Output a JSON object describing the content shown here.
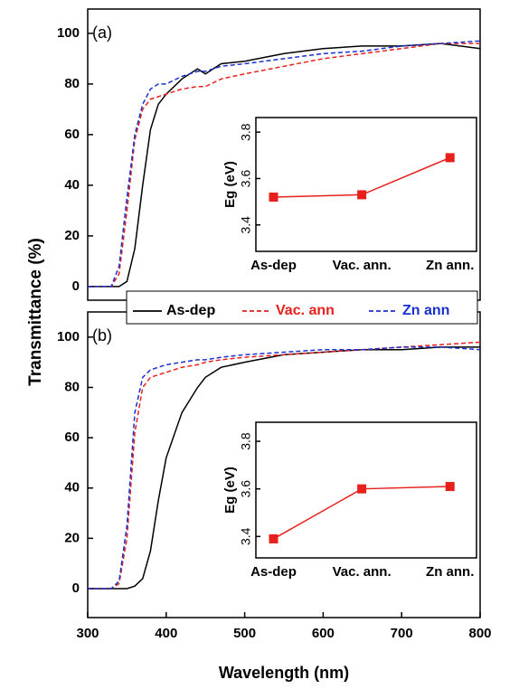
{
  "chart_data": [
    {
      "type": "line",
      "label": "(a)",
      "ylabel": "Transmittance (%)",
      "x": [
        300,
        330,
        340,
        350,
        360,
        370,
        380,
        390,
        400,
        420,
        440,
        450,
        470,
        500,
        550,
        600,
        650,
        700,
        750,
        800
      ],
      "xlim": [
        300,
        800
      ],
      "ylim": [
        -5.4,
        109.6
      ],
      "yticks": [
        0,
        20,
        40,
        60,
        80,
        100
      ],
      "series": [
        {
          "name": "As-dep",
          "color": "#000000",
          "style": "solid",
          "values": [
            0,
            0,
            0,
            2,
            15,
            40,
            62,
            72,
            76,
            82,
            86,
            84,
            88,
            89,
            92,
            94,
            95,
            95,
            96,
            94
          ]
        },
        {
          "name": "Vac. ann",
          "color": "#e8201c",
          "style": "dashed",
          "values": [
            0,
            0,
            5,
            30,
            58,
            70,
            74,
            75,
            76,
            78,
            79,
            79,
            82,
            84,
            87,
            90,
            92,
            94,
            96,
            96
          ]
        },
        {
          "name": "Zn ann",
          "color": "#1a2fd0",
          "style": "dashed",
          "values": [
            0,
            0,
            8,
            35,
            60,
            72,
            78,
            80,
            80,
            83,
            85,
            85,
            87,
            88,
            90,
            92,
            93,
            95,
            96,
            97
          ]
        }
      ]
    },
    {
      "type": "line",
      "marker": "square",
      "ylabel": "Eg (eV)",
      "color": "#e8201c",
      "categories": [
        "As-dep",
        "Vac. ann.",
        "Zn ann."
      ],
      "values": [
        3.52,
        3.53,
        3.69
      ],
      "ylim": [
        3.286,
        3.863
      ],
      "yticks": [
        3.4,
        3.6,
        3.8
      ]
    },
    {
      "type": "line",
      "label": "(b)",
      "xlabel": "Wavelength (nm)",
      "x": [
        300,
        330,
        340,
        350,
        360,
        370,
        380,
        390,
        400,
        420,
        440,
        450,
        470,
        500,
        550,
        600,
        650,
        700,
        750,
        800
      ],
      "xlim": [
        300,
        800
      ],
      "xticks": [
        300,
        400,
        500,
        600,
        700,
        800
      ],
      "ylim": [
        -11.5,
        110
      ],
      "yticks": [
        0,
        20,
        40,
        60,
        80,
        100
      ],
      "series": [
        {
          "color": "#000000",
          "style": "solid",
          "values": [
            0,
            0,
            0,
            0,
            1,
            4,
            15,
            35,
            52,
            70,
            80,
            84,
            88,
            90,
            93,
            94,
            95,
            95,
            96,
            96
          ]
        },
        {
          "color": "#e8201c",
          "style": "dashed",
          "values": [
            0,
            0,
            2,
            20,
            62,
            80,
            84,
            85,
            86,
            88,
            89,
            90,
            91,
            92,
            93,
            94,
            95,
            96,
            97,
            98
          ]
        },
        {
          "color": "#1a2fd0",
          "style": "dashed",
          "values": [
            0,
            0,
            3,
            25,
            70,
            84,
            87,
            88,
            89,
            90,
            91,
            91,
            92,
            93,
            94,
            95,
            95,
            96,
            96,
            95
          ]
        }
      ]
    },
    {
      "type": "line",
      "marker": "square",
      "ylabel": "Eg (eV)",
      "color": "#e8201c",
      "categories": [
        "As-dep",
        "Vac. ann.",
        "Zn ann."
      ],
      "values": [
        3.39,
        3.6,
        3.61
      ],
      "ylim": [
        3.31,
        3.88
      ],
      "yticks": [
        3.4,
        3.6,
        3.8
      ]
    }
  ]
}
